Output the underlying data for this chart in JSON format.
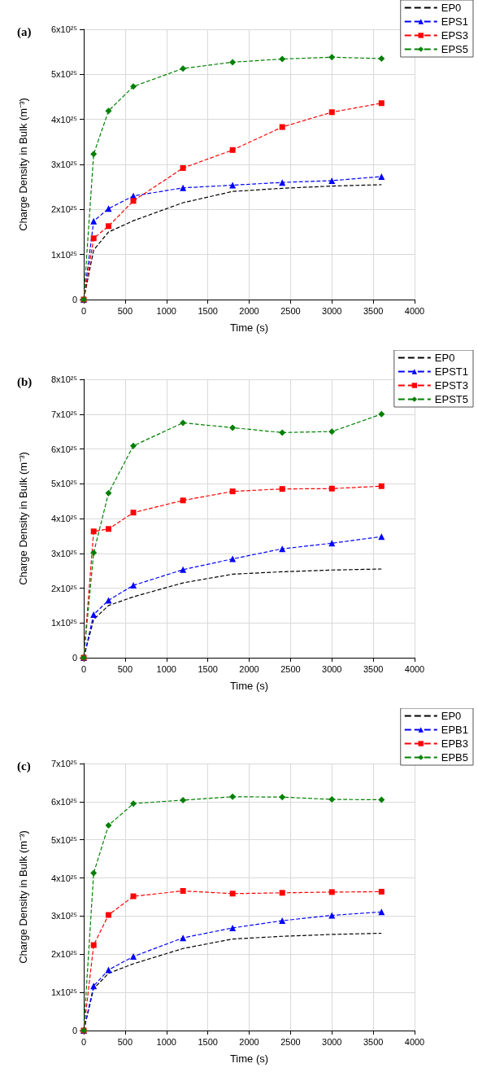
{
  "chart_data": [
    {
      "type": "line",
      "title": "(a)",
      "xlabel": "Time (s)",
      "ylabel": "Charge Density in Bulk (m⁻³)",
      "x": [
        0,
        120,
        300,
        600,
        1200,
        1800,
        2400,
        3000,
        3600
      ],
      "xlim": [
        0,
        4000
      ],
      "xticks": [
        0,
        500,
        1000,
        1500,
        2000,
        2500,
        3000,
        3500,
        4000
      ],
      "ylim": [
        0,
        6e+25
      ],
      "yticks": [
        {
          "value": 0,
          "label": "0"
        },
        {
          "value": 1e+25,
          "label": "1x10²⁵"
        },
        {
          "value": 2e+25,
          "label": "2x10²⁵"
        },
        {
          "value": 3e+25,
          "label": "3x10²⁵"
        },
        {
          "value": 4e+25,
          "label": "4x10²⁵"
        },
        {
          "value": 5e+25,
          "label": "5x10²⁵"
        },
        {
          "value": 6e+25,
          "label": "6x10²⁵"
        }
      ],
      "grid": true,
      "legend": "top right",
      "line_style": "dashed",
      "series": [
        {
          "name": "EP0",
          "color": "#000000",
          "marker": "none",
          "values": [
            0,
            1.1e+25,
            1.5e+25,
            1.75e+25,
            2.15e+25,
            2.4e+25,
            2.47e+25,
            2.52e+25,
            2.55e+25
          ]
        },
        {
          "name": "EPS1",
          "color": "#0000ff",
          "marker": "triangle",
          "values": [
            0,
            1.74e+25,
            2.02e+25,
            2.3e+25,
            2.48e+25,
            2.54e+25,
            2.6e+25,
            2.64e+25,
            2.73e+25
          ]
        },
        {
          "name": "EPS3",
          "color": "#ff0000",
          "marker": "square",
          "values": [
            0,
            1.36e+25,
            1.63e+25,
            2.19e+25,
            2.92e+25,
            3.32e+25,
            3.83e+25,
            4.16e+25,
            4.36e+25
          ]
        },
        {
          "name": "EPS5",
          "color": "#008000",
          "marker": "diamond",
          "values": [
            0,
            3.23e+25,
            4.19e+25,
            4.73e+25,
            5.13e+25,
            5.27e+25,
            5.34e+25,
            5.38e+25,
            5.35e+25
          ]
        }
      ]
    },
    {
      "type": "line",
      "title": "(b)",
      "xlabel": "Time (s)",
      "ylabel": "Charge Density in Bulk (m⁻³)",
      "x": [
        0,
        120,
        300,
        600,
        1200,
        1800,
        2400,
        3000,
        3600
      ],
      "xlim": [
        0,
        4000
      ],
      "xticks": [
        0,
        500,
        1000,
        1500,
        2000,
        2500,
        3000,
        3500,
        4000
      ],
      "ylim": [
        0,
        8e+25
      ],
      "yticks": [
        {
          "value": 0,
          "label": "0"
        },
        {
          "value": 1e+25,
          "label": "1x10²⁵"
        },
        {
          "value": 2e+25,
          "label": "2x10²⁵"
        },
        {
          "value": 3e+25,
          "label": "3x10²⁵"
        },
        {
          "value": 4e+25,
          "label": "4x10²⁵"
        },
        {
          "value": 5e+25,
          "label": "5x10²⁵"
        },
        {
          "value": 6e+25,
          "label": "6x10²⁵"
        },
        {
          "value": 7e+25,
          "label": "7x10²⁵"
        },
        {
          "value": 8e+25,
          "label": "8x10²⁵"
        }
      ],
      "grid": true,
      "legend": "top right",
      "line_style": "dashed",
      "series": [
        {
          "name": "EP0",
          "color": "#000000",
          "marker": "none",
          "values": [
            0,
            1.1e+25,
            1.5e+25,
            1.75e+25,
            2.15e+25,
            2.4e+25,
            2.47e+25,
            2.52e+25,
            2.55e+25
          ]
        },
        {
          "name": "EPST1",
          "color": "#0000ff",
          "marker": "triangle",
          "values": [
            0,
            1.24e+25,
            1.65e+25,
            2.08e+25,
            2.53e+25,
            2.84e+25,
            3.13e+25,
            3.29e+25,
            3.48e+25
          ]
        },
        {
          "name": "EPST3",
          "color": "#ff0000",
          "marker": "square",
          "values": [
            0,
            3.63e+25,
            3.7e+25,
            4.17e+25,
            4.52e+25,
            4.78e+25,
            4.85e+25,
            4.86e+25,
            4.93e+25
          ]
        },
        {
          "name": "EPST5",
          "color": "#008000",
          "marker": "diamond",
          "values": [
            0,
            3.02e+25,
            4.73e+25,
            6.09e+25,
            6.75e+25,
            6.61e+25,
            6.47e+25,
            6.5e+25,
            7e+25
          ]
        }
      ]
    },
    {
      "type": "line",
      "title": "(c)",
      "xlabel": "Time (s)",
      "ylabel": "Charge Density in Bulk (m⁻³)",
      "x": [
        0,
        120,
        300,
        600,
        1200,
        1800,
        2400,
        3000,
        3600
      ],
      "xlim": [
        0,
        4000
      ],
      "xticks": [
        0,
        500,
        1000,
        1500,
        2000,
        2500,
        3000,
        3500,
        4000
      ],
      "ylim": [
        0,
        7e+25
      ],
      "yticks": [
        {
          "value": 0,
          "label": "0"
        },
        {
          "value": 1e+25,
          "label": "1x10²⁵"
        },
        {
          "value": 2e+25,
          "label": "2x10²⁵"
        },
        {
          "value": 3e+25,
          "label": "3x10²⁵"
        },
        {
          "value": 4e+25,
          "label": "4x10²⁵"
        },
        {
          "value": 5e+25,
          "label": "5x10²⁵"
        },
        {
          "value": 6e+25,
          "label": "6x10²⁵"
        },
        {
          "value": 7e+25,
          "label": "7x10²⁵"
        }
      ],
      "grid": true,
      "legend": "top right",
      "line_style": "dashed",
      "series": [
        {
          "name": "EP0",
          "color": "#000000",
          "marker": "none",
          "values": [
            0,
            1.1e+25,
            1.5e+25,
            1.75e+25,
            2.15e+25,
            2.4e+25,
            2.47e+25,
            2.52e+25,
            2.55e+25
          ]
        },
        {
          "name": "EPB1",
          "color": "#0000ff",
          "marker": "triangle",
          "values": [
            0,
            1.17e+25,
            1.59e+25,
            1.94e+25,
            2.43e+25,
            2.69e+25,
            2.88e+25,
            3.02e+25,
            3.11e+25
          ]
        },
        {
          "name": "EPB3",
          "color": "#ff0000",
          "marker": "square",
          "values": [
            0,
            2.24e+25,
            3.03e+25,
            3.52e+25,
            3.66e+25,
            3.59e+25,
            3.61e+25,
            3.63e+25,
            3.64e+25
          ]
        },
        {
          "name": "EPB5",
          "color": "#008000",
          "marker": "diamond",
          "values": [
            0,
            4.13e+25,
            5.38e+25,
            5.95e+25,
            6.04e+25,
            6.13e+25,
            6.12e+25,
            6.06e+25,
            6.05e+25
          ]
        }
      ]
    }
  ]
}
